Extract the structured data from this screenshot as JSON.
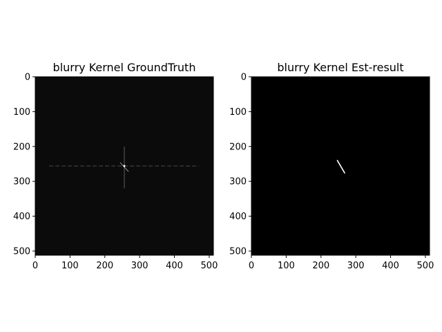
{
  "chart_data": [
    {
      "type": "heatmap",
      "title": "blurry Kernel GroundTruth",
      "xlabel": "",
      "ylabel": "",
      "xlim": [
        0,
        512
      ],
      "ylim": [
        512,
        0
      ],
      "xticks": [
        0,
        100,
        200,
        300,
        400,
        500
      ],
      "yticks": [
        0,
        100,
        200,
        300,
        400,
        500
      ],
      "colormap": "gray",
      "background": "#0b0b0b",
      "features": {
        "center": [
          256,
          256
        ],
        "horizontal_line": {
          "y": 256,
          "x_range": [
            40,
            470
          ],
          "intensity": 0.35
        },
        "vertical_line": {
          "x": 256,
          "y_range": [
            200,
            320
          ],
          "intensity": 0.45
        },
        "center_spot": {
          "x": 256,
          "y": 256,
          "intensity": 1.0
        },
        "diagonal_streak": {
          "from": [
            244,
            246
          ],
          "to": [
            268,
            272
          ],
          "intensity": 0.6
        }
      }
    },
    {
      "type": "heatmap",
      "title": "blurry Kernel Est-result",
      "xlabel": "",
      "ylabel": "",
      "xlim": [
        0,
        512
      ],
      "ylim": [
        512,
        0
      ],
      "xticks": [
        0,
        100,
        200,
        300,
        400,
        500
      ],
      "yticks": [
        0,
        100,
        200,
        300,
        400,
        500
      ],
      "colormap": "gray",
      "background": "#000000",
      "features": {
        "kernel_streak": {
          "from": [
            247,
            240
          ],
          "to": [
            268,
            276
          ],
          "intensity": 1.0
        }
      }
    }
  ]
}
